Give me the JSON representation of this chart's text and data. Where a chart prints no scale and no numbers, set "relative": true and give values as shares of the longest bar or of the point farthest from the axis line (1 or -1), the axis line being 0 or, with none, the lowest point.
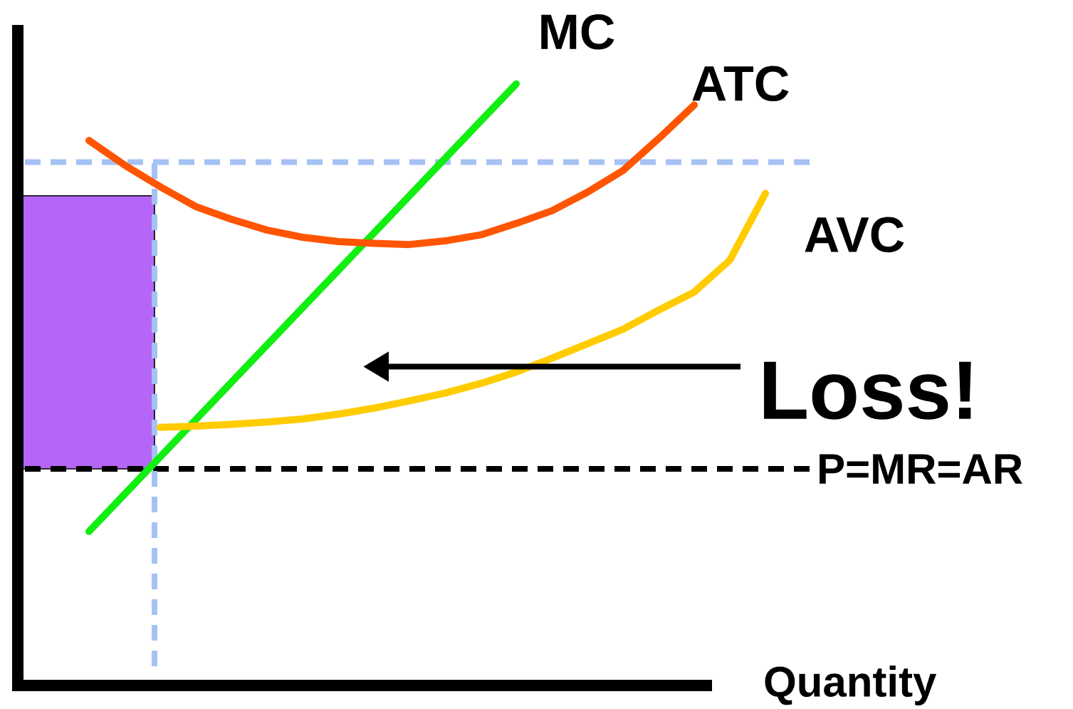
{
  "chart_data": {
    "type": "line",
    "relative": true,
    "xlabel": "Quantity",
    "categories": [
      null,
      null,
      null,
      null,
      null,
      null,
      null,
      null,
      null,
      null,
      null,
      null,
      null,
      null,
      null,
      null,
      null,
      null,
      null,
      null,
      null,
      null
    ],
    "series": [
      {
        "name": "MC",
        "color": "#11ee11",
        "values": [
          null,
          null,
          0.256,
          0.318,
          0.38,
          0.442,
          0.504,
          0.566,
          0.628,
          0.69,
          0.752,
          0.814,
          0.876,
          0.938,
          1.0,
          null,
          null,
          null,
          null,
          null,
          null,
          null
        ]
      },
      {
        "name": "ATC",
        "color": "#ff5500",
        "values": [
          null,
          null,
          0.906,
          0.865,
          0.829,
          0.796,
          0.775,
          0.757,
          0.745,
          0.738,
          0.735,
          0.733,
          0.739,
          0.749,
          0.768,
          0.789,
          0.82,
          0.856,
          0.909,
          0.965,
          null,
          null
        ]
      },
      {
        "name": "AVC",
        "color": "#ffcc00",
        "values": [
          null,
          null,
          null,
          null,
          0.429,
          0.431,
          0.434,
          0.438,
          0.443,
          0.451,
          0.461,
          0.473,
          0.486,
          0.502,
          0.521,
          0.544,
          0.568,
          0.592,
          0.624,
          0.654,
          0.707,
          0.818
        ]
      }
    ],
    "ref_lines": [
      {
        "axis": "y",
        "value": 0.36,
        "label": "P=MR=AR",
        "color": "#000000",
        "line_style": "dashed"
      },
      {
        "axis": "y",
        "value": 0.87,
        "color": "#a4c2f4",
        "line_style": "dashed"
      }
    ],
    "bands": [
      {
        "axis": "y",
        "from": 0.36,
        "to": 0.814,
        "color": "#b566f7"
      }
    ],
    "annotations": [
      "Loss!"
    ]
  }
}
